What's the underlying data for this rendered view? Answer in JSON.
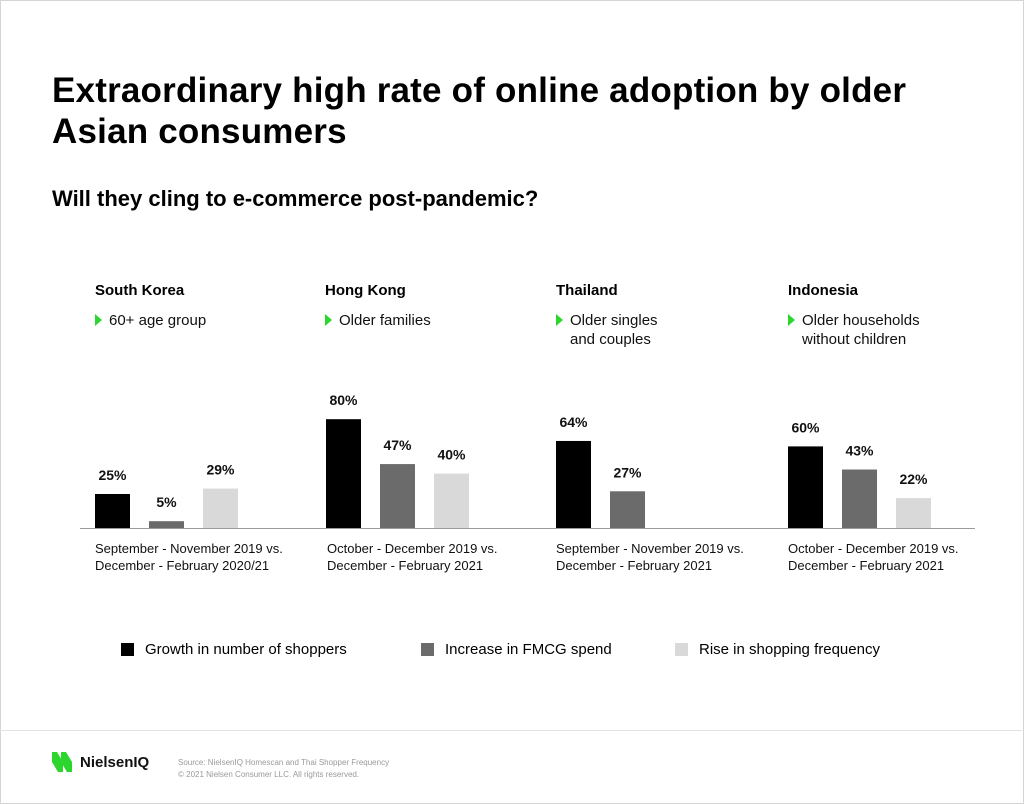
{
  "page": {
    "title": "Extraordinary high rate of online adoption by older Asian consumers",
    "subtitle": "Will they cling to e-commerce post-pandemic?"
  },
  "chart_data": {
    "type": "bar",
    "ylim": [
      0,
      100
    ],
    "legend_position": "bottom",
    "series": [
      {
        "name": "Growth in number of shoppers",
        "color": "#000000"
      },
      {
        "name": "Increase in FMCG spend",
        "color": "#6b6b6b"
      },
      {
        "name": "Rise in shopping frequency",
        "color": "#d9d9d9"
      }
    ],
    "groups": [
      {
        "country": "South Korea",
        "segment": "60+ age group",
        "period_line1": "September - November 2019 vs.",
        "period_line2": "December - February 2020/21",
        "values": [
          25,
          5,
          29
        ],
        "labels": [
          "25%",
          "5%",
          "29%"
        ]
      },
      {
        "country": "Hong Kong",
        "segment": "Older families",
        "period_line1": "October - December 2019 vs.",
        "period_line2": "December - February 2021",
        "values": [
          80,
          47,
          40
        ],
        "labels": [
          "80%",
          "47%",
          "40%"
        ]
      },
      {
        "country": "Thailand",
        "segment_line1": "Older singles",
        "segment_line2": "and couples",
        "period_line1": "September - November 2019 vs.",
        "period_line2": "December - February 2021",
        "values": [
          64,
          27,
          null
        ],
        "labels": [
          "64%",
          "27%",
          null
        ]
      },
      {
        "country": "Indonesia",
        "segment_line1": "Older households",
        "segment_line2": "without children",
        "period_line1": "October - December 2019 vs.",
        "period_line2": "December - February 2021",
        "values": [
          60,
          43,
          22
        ],
        "labels": [
          "60%",
          "43%",
          "22%"
        ]
      }
    ]
  },
  "footer": {
    "logo_text": "NielsenIQ",
    "logo_color": "#2dd62d",
    "source": "Source: NielsenIQ Homescan and Thai Shopper Frequency",
    "copyright": "© 2021 Nielsen Consumer LLC. All rights reserved."
  }
}
